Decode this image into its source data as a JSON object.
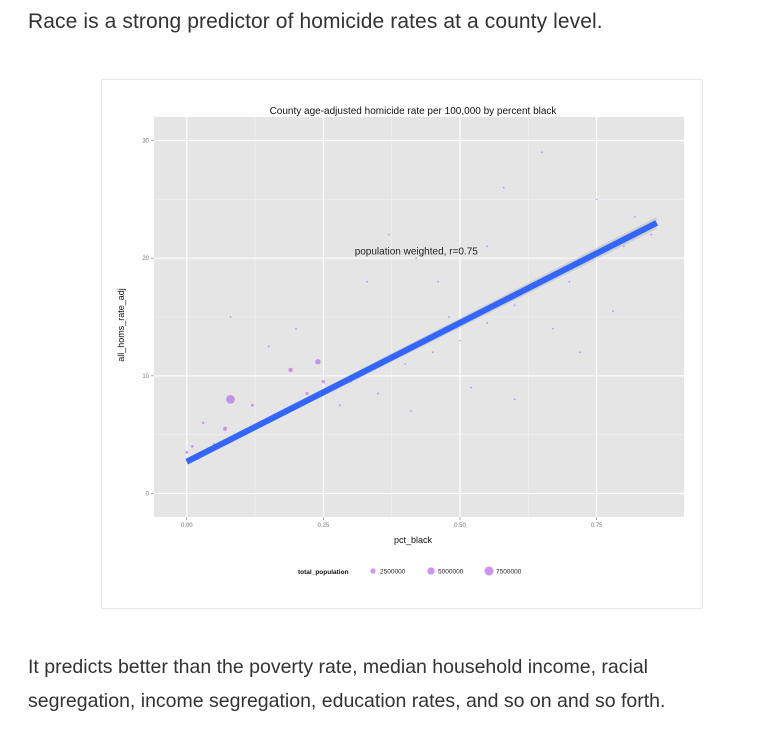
{
  "heading": "Race is a strong predictor of homicide rates at a county level.",
  "caption": "It predicts better than the poverty rate, median household income, racial segregation, income segregation, education rates, and so on and so forth.",
  "chart_data": {
    "type": "scatter",
    "title": "County age-adjusted homicide rate per 100,000 by percent black",
    "xlabel": "pct_black",
    "ylabel": "all_homs_rate_adj",
    "xlim": [
      -0.06,
      0.91
    ],
    "ylim": [
      -2,
      32
    ],
    "x_ticks": [
      0.0,
      0.25,
      0.5,
      0.75
    ],
    "x_tick_labels": [
      "0.00",
      "0.25",
      "0.50",
      "0.75"
    ],
    "y_ticks": [
      0,
      10,
      20,
      30
    ],
    "y_tick_labels": [
      "0",
      "10",
      "20",
      "30"
    ],
    "grid": true,
    "annotation": "population weighted, r=0.75",
    "point_color": "#a94ee8",
    "fit_color": "#3366ff",
    "fit_line": {
      "x": [
        0.0,
        0.86
      ],
      "y": [
        2.7,
        23.0
      ]
    },
    "legend": {
      "title": "total_population",
      "position": "bottom",
      "entries": [
        {
          "label": "2500000",
          "value": 2500000
        },
        {
          "label": "5000000",
          "value": 5000000
        },
        {
          "label": "7500000",
          "value": 7500000
        }
      ]
    },
    "series": [
      {
        "points": [
          {
            "x": 0.08,
            "y": 8.0,
            "pop": 4000000
          },
          {
            "x": 0.19,
            "y": 10.5,
            "pop": 1000000
          },
          {
            "x": 0.24,
            "y": 11.2,
            "pop": 1500000
          },
          {
            "x": 0.25,
            "y": 9.5,
            "pop": 600000
          },
          {
            "x": 0.07,
            "y": 5.5,
            "pop": 800000
          },
          {
            "x": 0.02,
            "y": 3.0,
            "pop": 600000
          },
          {
            "x": 0.03,
            "y": 6.0,
            "pop": 300000
          },
          {
            "x": 0.12,
            "y": 7.5,
            "pop": 400000
          },
          {
            "x": 0.22,
            "y": 8.5,
            "pop": 500000
          },
          {
            "x": 0.3,
            "y": 9.5,
            "pop": 300000
          },
          {
            "x": 0.0,
            "y": 3.5,
            "pop": 400000
          },
          {
            "x": 0.01,
            "y": 4.0,
            "pop": 350000
          },
          {
            "x": 0.05,
            "y": 4.2,
            "pop": 250000
          },
          {
            "x": 0.1,
            "y": 5.0,
            "pop": 300000
          },
          {
            "x": 0.15,
            "y": 6.2,
            "pop": 250000
          },
          {
            "x": 0.28,
            "y": 7.5,
            "pop": 200000
          },
          {
            "x": 0.35,
            "y": 8.5,
            "pop": 200000
          },
          {
            "x": 0.4,
            "y": 11.0,
            "pop": 150000
          },
          {
            "x": 0.45,
            "y": 12.0,
            "pop": 150000
          },
          {
            "x": 0.48,
            "y": 15.0,
            "pop": 120000
          },
          {
            "x": 0.5,
            "y": 13.0,
            "pop": 120000
          },
          {
            "x": 0.55,
            "y": 14.5,
            "pop": 100000
          },
          {
            "x": 0.6,
            "y": 16.0,
            "pop": 100000
          },
          {
            "x": 0.63,
            "y": 17.5,
            "pop": 90000
          },
          {
            "x": 0.7,
            "y": 18.0,
            "pop": 80000
          },
          {
            "x": 0.8,
            "y": 21.0,
            "pop": 80000
          },
          {
            "x": 0.82,
            "y": 23.5,
            "pop": 60000
          },
          {
            "x": 0.85,
            "y": 22.0,
            "pop": 60000
          },
          {
            "x": 0.75,
            "y": 25.0,
            "pop": 50000
          },
          {
            "x": 0.67,
            "y": 14.0,
            "pop": 80000
          },
          {
            "x": 0.55,
            "y": 21.0,
            "pop": 60000
          },
          {
            "x": 0.58,
            "y": 26.0,
            "pop": 40000
          },
          {
            "x": 0.42,
            "y": 20.0,
            "pop": 60000
          },
          {
            "x": 0.33,
            "y": 18.0,
            "pop": 60000
          },
          {
            "x": 0.41,
            "y": 7.0,
            "pop": 80000
          },
          {
            "x": 0.52,
            "y": 9.0,
            "pop": 70000
          },
          {
            "x": 0.6,
            "y": 8.0,
            "pop": 50000
          },
          {
            "x": 0.72,
            "y": 12.0,
            "pop": 60000
          },
          {
            "x": 0.78,
            "y": 15.5,
            "pop": 50000
          },
          {
            "x": 0.2,
            "y": 14.0,
            "pop": 60000
          },
          {
            "x": 0.15,
            "y": 12.5,
            "pop": 70000
          },
          {
            "x": 0.08,
            "y": 15.0,
            "pop": 50000
          },
          {
            "x": 0.37,
            "y": 22.0,
            "pop": 40000
          },
          {
            "x": 0.46,
            "y": 18.0,
            "pop": 60000
          },
          {
            "x": 0.65,
            "y": 29.0,
            "pop": 40000
          }
        ]
      }
    ]
  }
}
